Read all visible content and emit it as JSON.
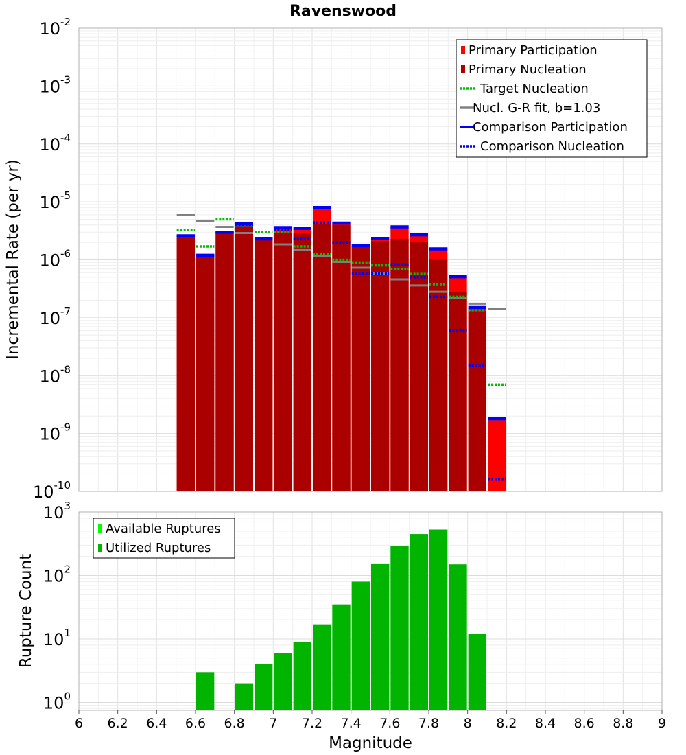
{
  "colors": {
    "primary_participation": "#ff0000",
    "primary_nucleation": "#aa0000",
    "target_nucleation": "#00c000",
    "gr_fit": "#808080",
    "comparison": "#0000ff",
    "rupture_count": "#00b400",
    "available_ruptures": "#00ff00"
  },
  "chart_data": [
    {
      "type": "bar",
      "title": "Ravenswood",
      "ylabel": "Incremental Rate (per yr)",
      "xlim": [
        6,
        9
      ],
      "ylim": [
        1e-10,
        0.01
      ],
      "yscale": "log",
      "grid": true,
      "legend_position": "top-right",
      "y_ticks": [
        {
          "base": "10",
          "exp": "-2",
          "value": 0.01
        },
        {
          "base": "10",
          "exp": "-3",
          "value": 0.001
        },
        {
          "base": "10",
          "exp": "-4",
          "value": 0.0001
        },
        {
          "base": "10",
          "exp": "-5",
          "value": 1e-05
        },
        {
          "base": "10",
          "exp": "-6",
          "value": 1e-06
        },
        {
          "base": "10",
          "exp": "-7",
          "value": 1e-07
        },
        {
          "base": "10",
          "exp": "-8",
          "value": 1e-08
        },
        {
          "base": "10",
          "exp": "-9",
          "value": 1e-09
        },
        {
          "base": "10",
          "exp": "-10",
          "value": 1e-10
        }
      ],
      "legend": [
        {
          "label": "Primary Participation",
          "style": "box",
          "color": "#ff0000"
        },
        {
          "label": "Primary Nucleation",
          "style": "box",
          "color": "#aa0000"
        },
        {
          "label": "Target Nucleation",
          "style": "dotted",
          "color": "#00c000"
        },
        {
          "label": "Nucl. G-R fit, b=1.03",
          "style": "solid",
          "color": "#808080"
        },
        {
          "label": "Comparison Participation",
          "style": "thick",
          "color": "#0000ff"
        },
        {
          "label": "Comparison Nucleation",
          "style": "dotted",
          "color": "#0000ff"
        }
      ],
      "x": [
        6.55,
        6.65,
        6.75,
        6.85,
        6.95,
        7.05,
        7.15,
        7.25,
        7.35,
        7.45,
        7.55,
        7.65,
        7.75,
        7.85,
        7.95,
        8.05,
        8.15
      ],
      "series": [
        {
          "name": "Primary Participation",
          "values": [
            2.6e-06,
            1.2e-06,
            3e-06,
            4.1e-06,
            2.3e-06,
            3.5e-06,
            3.4e-06,
            7.8e-06,
            4.2e-06,
            1.7e-06,
            2.3e-06,
            3.6e-06,
            2.6e-06,
            1.5e-06,
            5e-07,
            1.45e-07,
            1.7e-09
          ]
        },
        {
          "name": "Primary Nucleation",
          "values": [
            2.6e-06,
            1.2e-06,
            3e-06,
            3.8e-06,
            2.2e-06,
            2.9e-06,
            2.9e-06,
            4.2e-06,
            4e-06,
            1.7e-06,
            2.1e-06,
            2.3e-06,
            2e-06,
            1e-06,
            2.8e-07,
            1.3e-07,
            null
          ]
        },
        {
          "name": "Target Nucleation",
          "values": [
            3.3e-06,
            1.7e-06,
            5e-06,
            3.9e-06,
            3e-06,
            3e-06,
            1.7e-06,
            1.25e-06,
            1e-06,
            9e-07,
            8e-07,
            7e-07,
            5.7e-07,
            3.8e-07,
            2.3e-07,
            1.35e-07,
            7e-09
          ]
        },
        {
          "name": "Nucl. G-R fit, b=1.03",
          "values": [
            5.9e-06,
            4.7e-06,
            3.7e-06,
            2.9e-06,
            2.3e-06,
            1.85e-06,
            1.47e-06,
            1.17e-06,
            9.2e-07,
            7.3e-07,
            5.8e-07,
            4.6e-07,
            3.6e-07,
            2.8e-07,
            2.2e-07,
            1.75e-07,
            1.4e-07
          ]
        },
        {
          "name": "Comparison Participation",
          "values": [
            2.6e-06,
            1.2e-06,
            3e-06,
            4.2e-06,
            2.3e-06,
            3.6e-06,
            3.5e-06,
            8e-06,
            4.3e-06,
            1.75e-06,
            2.35e-06,
            3.7e-06,
            2.7e-06,
            1.55e-06,
            5.1e-07,
            1.5e-07,
            1.8e-09
          ]
        },
        {
          "name": "Comparison Nucleation",
          "values": [
            2.6e-06,
            1.2e-06,
            3e-06,
            4e-06,
            2.3e-06,
            3.3e-06,
            2.3e-06,
            4.4e-06,
            2e-06,
            5.8e-07,
            5.8e-07,
            8.3e-07,
            5e-07,
            2.3e-07,
            6e-08,
            1.5e-08,
            1.6e-10
          ]
        }
      ]
    },
    {
      "type": "bar",
      "xlabel": "Magnitude",
      "ylabel": "Rupture Count",
      "xlim": [
        6,
        9
      ],
      "ylim": [
        0.75,
        1000
      ],
      "yscale": "log",
      "grid": true,
      "legend_position": "top-left",
      "y_ticks": [
        {
          "base": "10",
          "exp": "3",
          "value": 1000
        },
        {
          "base": "10",
          "exp": "2",
          "value": 100
        },
        {
          "base": "10",
          "exp": "1",
          "value": 10
        },
        {
          "base": "10",
          "exp": "0",
          "value": 1
        }
      ],
      "x_ticks": [
        "6",
        "6.2",
        "6.4",
        "6.6",
        "6.8",
        "7",
        "7.2",
        "7.4",
        "7.6",
        "7.8",
        "8",
        "8.2",
        "8.4",
        "8.6",
        "8.8",
        "9"
      ],
      "legend": [
        {
          "label": "Available Ruptures",
          "style": "box",
          "color": "#00ff00"
        },
        {
          "label": "Utilized Ruptures",
          "style": "box",
          "color": "#00b400"
        }
      ],
      "x": [
        6.65,
        6.85,
        6.95,
        7.05,
        7.15,
        7.25,
        7.35,
        7.45,
        7.55,
        7.65,
        7.75,
        7.85,
        7.95,
        8.05
      ],
      "series": [
        {
          "name": "Utilized Ruptures",
          "values": [
            3,
            2,
            4,
            6,
            9,
            17,
            35,
            80,
            155,
            290,
            450,
            530,
            150,
            12
          ]
        }
      ]
    }
  ]
}
